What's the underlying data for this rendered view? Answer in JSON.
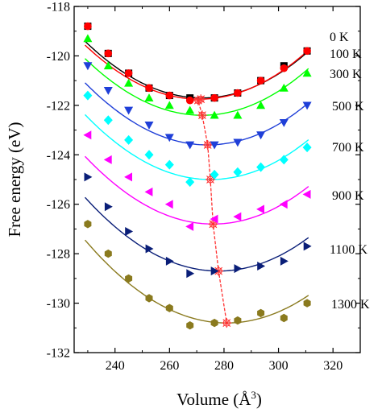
{
  "chart_data": {
    "type": "scatter",
    "xlabel": "Volume (Å",
    "xlabel_sup": "3",
    "xlabel_end": ")",
    "ylabel": "Free energy (eV)",
    "xlim": [
      225,
      330
    ],
    "ylim": [
      -132,
      -118
    ],
    "xticks": [
      240,
      260,
      280,
      300,
      320
    ],
    "xtick_labels": [
      "240",
      "260",
      "280",
      "300",
      "320"
    ],
    "yticks": [
      -132,
      -130,
      -128,
      -126,
      -124,
      -122,
      -120,
      -118
    ],
    "ytick_labels": [
      "-132",
      "-130",
      "-128",
      "-126",
      "-124",
      "-122",
      "-120",
      "-118"
    ],
    "grid": false,
    "series": [
      {
        "name": "0 K",
        "color": "#000000",
        "marker": "square",
        "x": [
          230.0,
          237.5,
          245.0,
          252.5,
          260.0,
          267.5,
          276.5,
          285.0,
          293.5,
          302.0,
          310.5
        ],
        "y": [
          -118.8,
          -119.9,
          -120.7,
          -121.3,
          -121.6,
          -121.7,
          -121.7,
          -121.5,
          -121.0,
          -120.4,
          -119.8
        ],
        "fit": {
          "x0": 272.0,
          "y0": -121.7,
          "a": 0.00124,
          "from": 229,
          "to": 311
        }
      },
      {
        "name": "100 K",
        "color": "#ff0000",
        "marker": "circle",
        "x": [
          230.0,
          237.5,
          245.0,
          252.5,
          260.0,
          267.5,
          276.5,
          285.0,
          293.5,
          302.0,
          310.5
        ],
        "y": [
          -118.8,
          -119.9,
          -120.7,
          -121.3,
          -121.6,
          -121.8,
          -121.7,
          -121.5,
          -121.0,
          -120.5,
          -119.8
        ],
        "fit": {
          "x0": 271.0,
          "y0": -121.75,
          "a": 0.00124,
          "from": 229,
          "to": 311
        }
      },
      {
        "name": "300 K",
        "color": "#00ff00",
        "marker": "triangle-up",
        "x": [
          230.0,
          237.5,
          245.0,
          252.5,
          260.0,
          267.5,
          276.5,
          285.0,
          293.5,
          302.0,
          310.5
        ],
        "y": [
          -119.3,
          -120.4,
          -121.1,
          -121.7,
          -122.0,
          -122.2,
          -122.4,
          -122.4,
          -122.0,
          -121.3,
          -120.7
        ],
        "fit": {
          "x0": 272.0,
          "y0": -122.4,
          "a": 0.00124,
          "from": 229,
          "to": 311
        }
      },
      {
        "name": "500 K",
        "color": "#1f3fd8",
        "marker": "triangle-down",
        "x": [
          230.0,
          237.5,
          245.0,
          252.5,
          260.0,
          267.5,
          276.5,
          285.0,
          293.5,
          302.0,
          310.5
        ],
        "y": [
          -120.4,
          -121.4,
          -122.2,
          -122.8,
          -123.3,
          -123.6,
          -123.6,
          -123.5,
          -123.2,
          -122.7,
          -122.0
        ],
        "fit": {
          "x0": 274.0,
          "y0": -123.6,
          "a": 0.00124,
          "from": 229,
          "to": 311
        }
      },
      {
        "name": "700 K",
        "color": "#00ffff",
        "marker": "diamond",
        "x": [
          230.0,
          237.5,
          245.0,
          252.5,
          260.0,
          267.5,
          276.5,
          285.0,
          293.5,
          302.0,
          310.5
        ],
        "y": [
          -121.6,
          -122.6,
          -123.4,
          -124.0,
          -124.4,
          -125.1,
          -124.8,
          -124.7,
          -124.5,
          -124.2,
          -123.7
        ],
        "fit": {
          "x0": 275.0,
          "y0": -125.0,
          "a": 0.00124,
          "from": 229,
          "to": 311
        }
      },
      {
        "name": "900 K",
        "color": "#ff00ff",
        "marker": "triangle-left",
        "x": [
          230.0,
          237.5,
          245.0,
          252.5,
          260.0,
          267.5,
          276.5,
          285.0,
          293.5,
          302.0,
          310.5
        ],
        "y": [
          -123.2,
          -124.2,
          -124.9,
          -125.5,
          -126.0,
          -126.9,
          -126.6,
          -126.5,
          -126.2,
          -126.0,
          -125.6
        ],
        "fit": {
          "x0": 276.0,
          "y0": -126.8,
          "a": 0.00124,
          "from": 229,
          "to": 311
        }
      },
      {
        "name": "1100 K",
        "color": "#0a1e78",
        "marker": "triangle-right",
        "x": [
          230.0,
          237.5,
          245.0,
          252.5,
          260.0,
          267.5,
          276.5,
          285.0,
          293.5,
          302.0,
          310.5
        ],
        "y": [
          -124.9,
          -126.1,
          -127.1,
          -127.8,
          -128.3,
          -128.8,
          -128.7,
          -128.6,
          -128.5,
          -128.3,
          -127.7
        ],
        "fit": {
          "x0": 278.0,
          "y0": -128.7,
          "a": 0.00124,
          "from": 229,
          "to": 311
        }
      },
      {
        "name": "1300 K",
        "color": "#8a7a1e",
        "marker": "hexagon",
        "x": [
          230.0,
          237.5,
          245.0,
          252.5,
          260.0,
          267.5,
          276.5,
          285.0,
          293.5,
          302.0,
          310.5
        ],
        "y": [
          -126.8,
          -128.0,
          -129.0,
          -129.8,
          -130.2,
          -130.9,
          -130.8,
          -130.7,
          -130.4,
          -130.6,
          -130.0
        ],
        "fit": {
          "x0": 281.0,
          "y0": -130.8,
          "a": 0.00124,
          "from": 229,
          "to": 311
        }
      }
    ],
    "minima": {
      "color": "#ff3030",
      "x": [
        271.5,
        270.5,
        272.0,
        274.0,
        275.0,
        276.0,
        278.0,
        281.0
      ],
      "y": [
        -121.75,
        -121.8,
        -122.4,
        -123.6,
        -125.0,
        -126.8,
        -128.7,
        -130.8
      ]
    }
  }
}
